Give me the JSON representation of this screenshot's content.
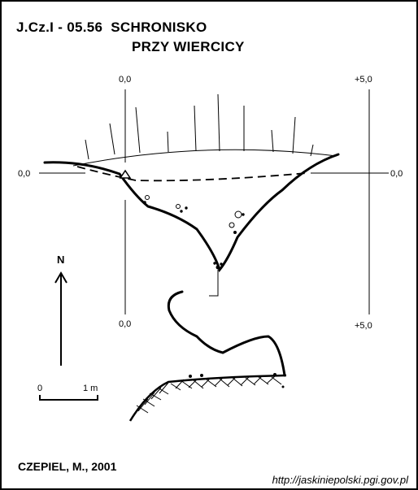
{
  "title": {
    "code": "J.Cz.I - 05.56",
    "name_line1": "SCHRONISKO",
    "name_line2": "PRZY WIERCICY"
  },
  "grid_labels": {
    "top_left": "0,0",
    "top_right": "+5,0",
    "left": "0,0",
    "right": "0,0",
    "bottom_left": "0,0",
    "bottom_right": "+5,0"
  },
  "north_arrow": {
    "label": "N"
  },
  "scale_bar": {
    "zero": "0",
    "end": "1 m"
  },
  "author": "CZEPIEL, M., 2001",
  "source_url": "http://jaskiniepolski.pgi.gov.pl"
}
